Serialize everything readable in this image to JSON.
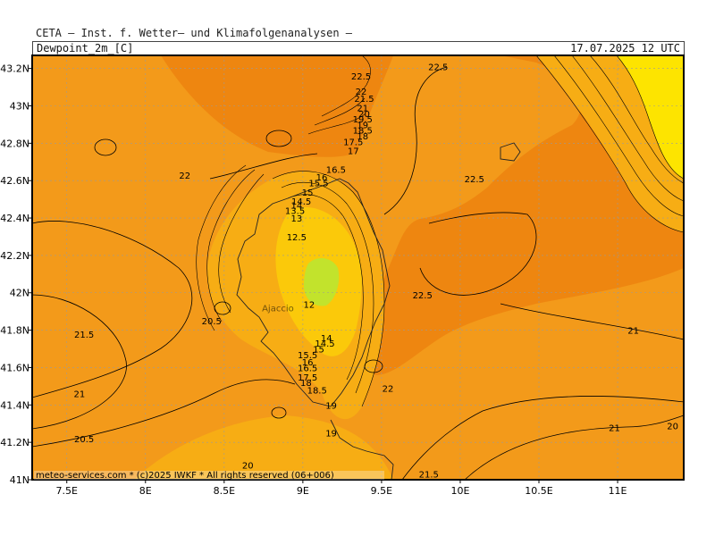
{
  "header": {
    "institute": "CETA — Inst. f. Wetter— und Klimafolgenanalysen —",
    "variable": "Dewpoint_2m_[C]",
    "datetime": "17.07.2025 12 UTC"
  },
  "footer": {
    "credit": "meteo-services.com * (c)2025 IWKF * All rights reserved (06+006)"
  },
  "colors": {
    "base": "#f39a1a",
    "dark": "#ee8610",
    "mid": "#f7ad14",
    "light": "#fbc90a",
    "yellow": "#fde400",
    "green": "#c2e32c"
  },
  "chart_data": {
    "type": "heatmap",
    "title": "Dewpoint_2m_[C]",
    "xlim": [
      7.28,
      11.42
    ],
    "ylim": [
      41.0,
      43.27
    ],
    "x_ticks": [
      7.5,
      8.0,
      8.5,
      9.0,
      9.5,
      10.0,
      10.5,
      11.0
    ],
    "x_tick_labels": [
      "7.5E",
      "8E",
      "8.5E",
      "9E",
      "9.5E",
      "10E",
      "10.5E",
      "11E"
    ],
    "y_ticks": [
      41.0,
      41.2,
      41.4,
      41.6,
      41.8,
      42.0,
      42.2,
      42.4,
      42.6,
      42.8,
      43.0,
      43.2
    ],
    "y_tick_labels": [
      "41N",
      "41.2N",
      "41.4N",
      "41.6N",
      "41.8N",
      "42N",
      "42.2N",
      "42.4N",
      "42.6N",
      "42.8N",
      "43N",
      "43.2N"
    ],
    "grid": "dashed",
    "place_label": {
      "text": "Ajaccio",
      "lon": 8.74,
      "lat": 41.92
    },
    "contour_labels": [
      {
        "text": "22.5",
        "lon": 9.37,
        "lat": 43.16
      },
      {
        "text": "22",
        "lon": 9.37,
        "lat": 43.08
      },
      {
        "text": "21.5",
        "lon": 9.39,
        "lat": 43.04
      },
      {
        "text": "21",
        "lon": 9.38,
        "lat": 42.99
      },
      {
        "text": "20",
        "lon": 9.39,
        "lat": 42.96
      },
      {
        "text": "19.5",
        "lon": 9.38,
        "lat": 42.93
      },
      {
        "text": "19",
        "lon": 9.38,
        "lat": 42.9
      },
      {
        "text": "18.5",
        "lon": 9.38,
        "lat": 42.87
      },
      {
        "text": "18",
        "lon": 9.38,
        "lat": 42.84
      },
      {
        "text": "17.5",
        "lon": 9.32,
        "lat": 42.81
      },
      {
        "text": "17",
        "lon": 9.32,
        "lat": 42.76
      },
      {
        "text": "16.5",
        "lon": 9.21,
        "lat": 42.66
      },
      {
        "text": "16",
        "lon": 9.12,
        "lat": 42.62
      },
      {
        "text": "15.5",
        "lon": 9.1,
        "lat": 42.59
      },
      {
        "text": "15",
        "lon": 9.03,
        "lat": 42.54
      },
      {
        "text": "14.5",
        "lon": 8.99,
        "lat": 42.49
      },
      {
        "text": "14",
        "lon": 8.96,
        "lat": 42.47
      },
      {
        "text": "13.5",
        "lon": 8.95,
        "lat": 42.44
      },
      {
        "text": "13",
        "lon": 8.96,
        "lat": 42.4
      },
      {
        "text": "12.5",
        "lon": 8.96,
        "lat": 42.3
      },
      {
        "text": "12",
        "lon": 9.04,
        "lat": 41.94
      },
      {
        "text": "14",
        "lon": 9.15,
        "lat": 41.76
      },
      {
        "text": "14.5",
        "lon": 9.14,
        "lat": 41.73
      },
      {
        "text": "15",
        "lon": 9.1,
        "lat": 41.7
      },
      {
        "text": "15.5",
        "lon": 9.03,
        "lat": 41.67
      },
      {
        "text": "16",
        "lon": 9.03,
        "lat": 41.63
      },
      {
        "text": "16.5",
        "lon": 9.03,
        "lat": 41.6
      },
      {
        "text": "17.5",
        "lon": 9.03,
        "lat": 41.55
      },
      {
        "text": "18",
        "lon": 9.02,
        "lat": 41.52
      },
      {
        "text": "18.5",
        "lon": 9.09,
        "lat": 41.48
      },
      {
        "text": "19",
        "lon": 9.18,
        "lat": 41.4
      },
      {
        "text": "19",
        "lon": 9.18,
        "lat": 41.25
      },
      {
        "text": "22",
        "lon": 9.54,
        "lat": 41.49
      },
      {
        "text": "22.5",
        "lon": 9.76,
        "lat": 41.99
      },
      {
        "text": "22.5",
        "lon": 9.86,
        "lat": 43.21
      },
      {
        "text": "22",
        "lon": 8.25,
        "lat": 42.63
      },
      {
        "text": "22.5",
        "lon": 10.09,
        "lat": 42.61
      },
      {
        "text": "20.5",
        "lon": 8.42,
        "lat": 41.85
      },
      {
        "text": "21.5",
        "lon": 7.61,
        "lat": 41.78
      },
      {
        "text": "21",
        "lon": 7.58,
        "lat": 41.46
      },
      {
        "text": "20.5",
        "lon": 7.61,
        "lat": 41.22
      },
      {
        "text": "20",
        "lon": 8.65,
        "lat": 41.08
      },
      {
        "text": "21.5",
        "lon": 9.8,
        "lat": 41.03
      },
      {
        "text": "21",
        "lon": 11.1,
        "lat": 41.8
      },
      {
        "text": "21",
        "lon": 10.98,
        "lat": 41.28
      },
      {
        "text": "20",
        "lon": 11.35,
        "lat": 41.29
      }
    ]
  }
}
